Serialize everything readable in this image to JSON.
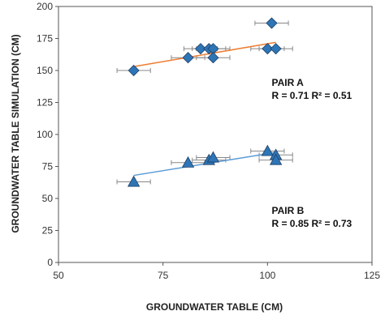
{
  "chart_data": {
    "type": "scatter",
    "xlabel": "GROUNDWATER TABLE (CM)",
    "ylabel": "GROUNDWATER TABLE SIMULATION (CM)",
    "xlim": [
      50,
      125
    ],
    "ylim": [
      0,
      200
    ],
    "x_ticks": [
      "50",
      "75",
      "100",
      "125"
    ],
    "y_ticks": [
      "0",
      "25",
      "50",
      "75",
      "100",
      "125",
      "150",
      "175",
      "200"
    ],
    "grid": false,
    "error_bars": "horizontal",
    "series": [
      {
        "marker": "diamond",
        "color": "#2E75B6",
        "trend_color": "#ED7D31",
        "points": [
          {
            "x": 68,
            "y": 150,
            "xerr": 4
          },
          {
            "x": 81,
            "y": 160,
            "xerr": 4
          },
          {
            "x": 84,
            "y": 167,
            "xerr": 4
          },
          {
            "x": 86,
            "y": 167,
            "xerr": 4
          },
          {
            "x": 87,
            "y": 167,
            "xerr": 4
          },
          {
            "x": 87,
            "y": 160,
            "xerr": 4
          },
          {
            "x": 100,
            "y": 167,
            "xerr": 4
          },
          {
            "x": 101,
            "y": 187,
            "xerr": 4
          },
          {
            "x": 102,
            "y": 167,
            "xerr": 4
          }
        ],
        "trendline": {
          "x": [
            68,
            102
          ],
          "y": [
            153,
            172
          ]
        }
      },
      {
        "marker": "triangle",
        "color": "#2E75B6",
        "trend_color": "#5B9BD5",
        "points": [
          {
            "x": 68,
            "y": 63,
            "xerr": 4
          },
          {
            "x": 81,
            "y": 78,
            "xerr": 4
          },
          {
            "x": 86,
            "y": 80,
            "xerr": 4
          },
          {
            "x": 87,
            "y": 82,
            "xerr": 4
          },
          {
            "x": 100,
            "y": 87,
            "xerr": 4
          },
          {
            "x": 102,
            "y": 84,
            "xerr": 4
          },
          {
            "x": 102,
            "y": 80,
            "xerr": 4
          }
        ],
        "trendline": {
          "x": [
            68,
            102
          ],
          "y": [
            68,
            86
          ]
        }
      }
    ],
    "annotations": [
      {
        "line1": "PAIR A",
        "line2": "R = 0.71  R² = 0.51",
        "x": 101,
        "y": 138
      },
      {
        "line1": "PAIR B",
        "line2": "R = 0.85  R² = 0.73",
        "x": 101,
        "y": 38
      }
    ]
  }
}
